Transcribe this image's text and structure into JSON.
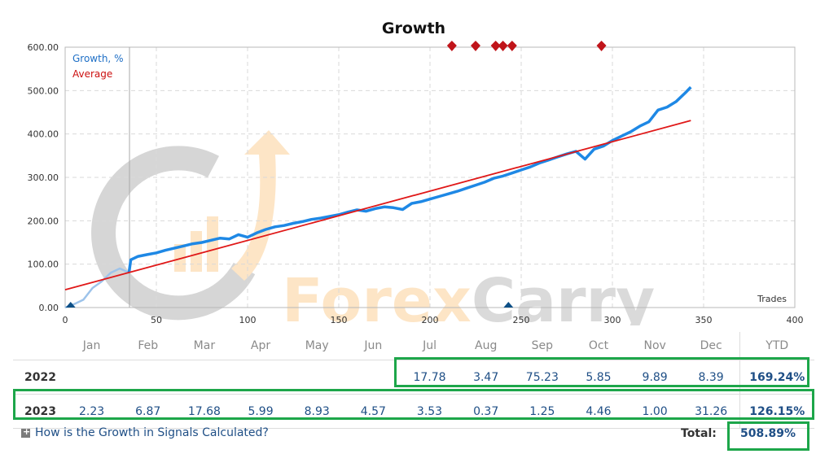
{
  "chart_data": {
    "type": "line",
    "title": "Growth",
    "xlabel": "Trades",
    "ylabel": "",
    "xlim": [
      0,
      400
    ],
    "ylim": [
      0,
      600
    ],
    "x_ticks": [
      "0",
      "50",
      "100",
      "150",
      "200",
      "250",
      "300",
      "350",
      "400"
    ],
    "y_ticks": [
      "0.00",
      "100.00",
      "200.00",
      "300.00",
      "400.00",
      "500.00",
      "600.00"
    ],
    "grid": true,
    "legend_position": "top-left",
    "series": [
      {
        "name": "Growth, %",
        "color": "#1e88e5",
        "x": [
          0,
          5,
          10,
          15,
          20,
          25,
          30,
          35,
          36,
          40,
          45,
          50,
          55,
          60,
          65,
          70,
          75,
          80,
          85,
          90,
          95,
          100,
          105,
          110,
          115,
          120,
          125,
          130,
          135,
          140,
          145,
          150,
          155,
          160,
          165,
          170,
          175,
          180,
          185,
          190,
          195,
          200,
          205,
          210,
          215,
          220,
          225,
          230,
          235,
          240,
          245,
          250,
          255,
          260,
          265,
          270,
          275,
          280,
          285,
          290,
          295,
          300,
          305,
          310,
          315,
          320,
          325,
          330,
          335,
          340,
          343
        ],
        "y": [
          0,
          8,
          18,
          45,
          60,
          80,
          90,
          80,
          110,
          118,
          122,
          126,
          132,
          137,
          142,
          147,
          150,
          155,
          160,
          158,
          168,
          162,
          172,
          180,
          186,
          189,
          194,
          198,
          203,
          206,
          210,
          214,
          220,
          225,
          222,
          228,
          232,
          230,
          226,
          240,
          244,
          250,
          256,
          262,
          268,
          275,
          282,
          289,
          298,
          303,
          310,
          317,
          324,
          333,
          340,
          347,
          354,
          360,
          342,
          365,
          372,
          385,
          395,
          405,
          418,
          428,
          455,
          462,
          475,
          495,
          508
        ]
      },
      {
        "name": "Average",
        "color": "#e01818",
        "x": [
          0,
          343
        ],
        "y": [
          41,
          431
        ]
      }
    ],
    "markers": {
      "deposit_x": [
        3,
        243
      ],
      "withdrawal_x": [
        212,
        225,
        236,
        240,
        245,
        294
      ]
    },
    "watermark": "ForexCarry"
  },
  "table": {
    "months": [
      "Jan",
      "Feb",
      "Mar",
      "Apr",
      "May",
      "Jun",
      "Jul",
      "Aug",
      "Sep",
      "Oct",
      "Nov",
      "Dec"
    ],
    "ytd_header": "YTD",
    "rows": [
      {
        "year": "2022",
        "values": [
          "",
          "",
          "",
          "",
          "",
          "",
          "17.78",
          "3.47",
          "75.23",
          "5.85",
          "9.89",
          "8.39"
        ],
        "ytd": "169.24%"
      },
      {
        "year": "2023",
        "values": [
          "2.23",
          "6.87",
          "17.68",
          "5.99",
          "8.93",
          "4.57",
          "3.53",
          "0.37",
          "1.25",
          "4.46",
          "1.00",
          "31.26"
        ],
        "ytd": "126.15%"
      }
    ]
  },
  "footer": {
    "help_link": "How is the Growth in Signals Calculated?",
    "total_label": "Total:",
    "total_value": "508.89%"
  },
  "colors": {
    "highlight": "#1da64a",
    "link": "#1f4f86"
  }
}
